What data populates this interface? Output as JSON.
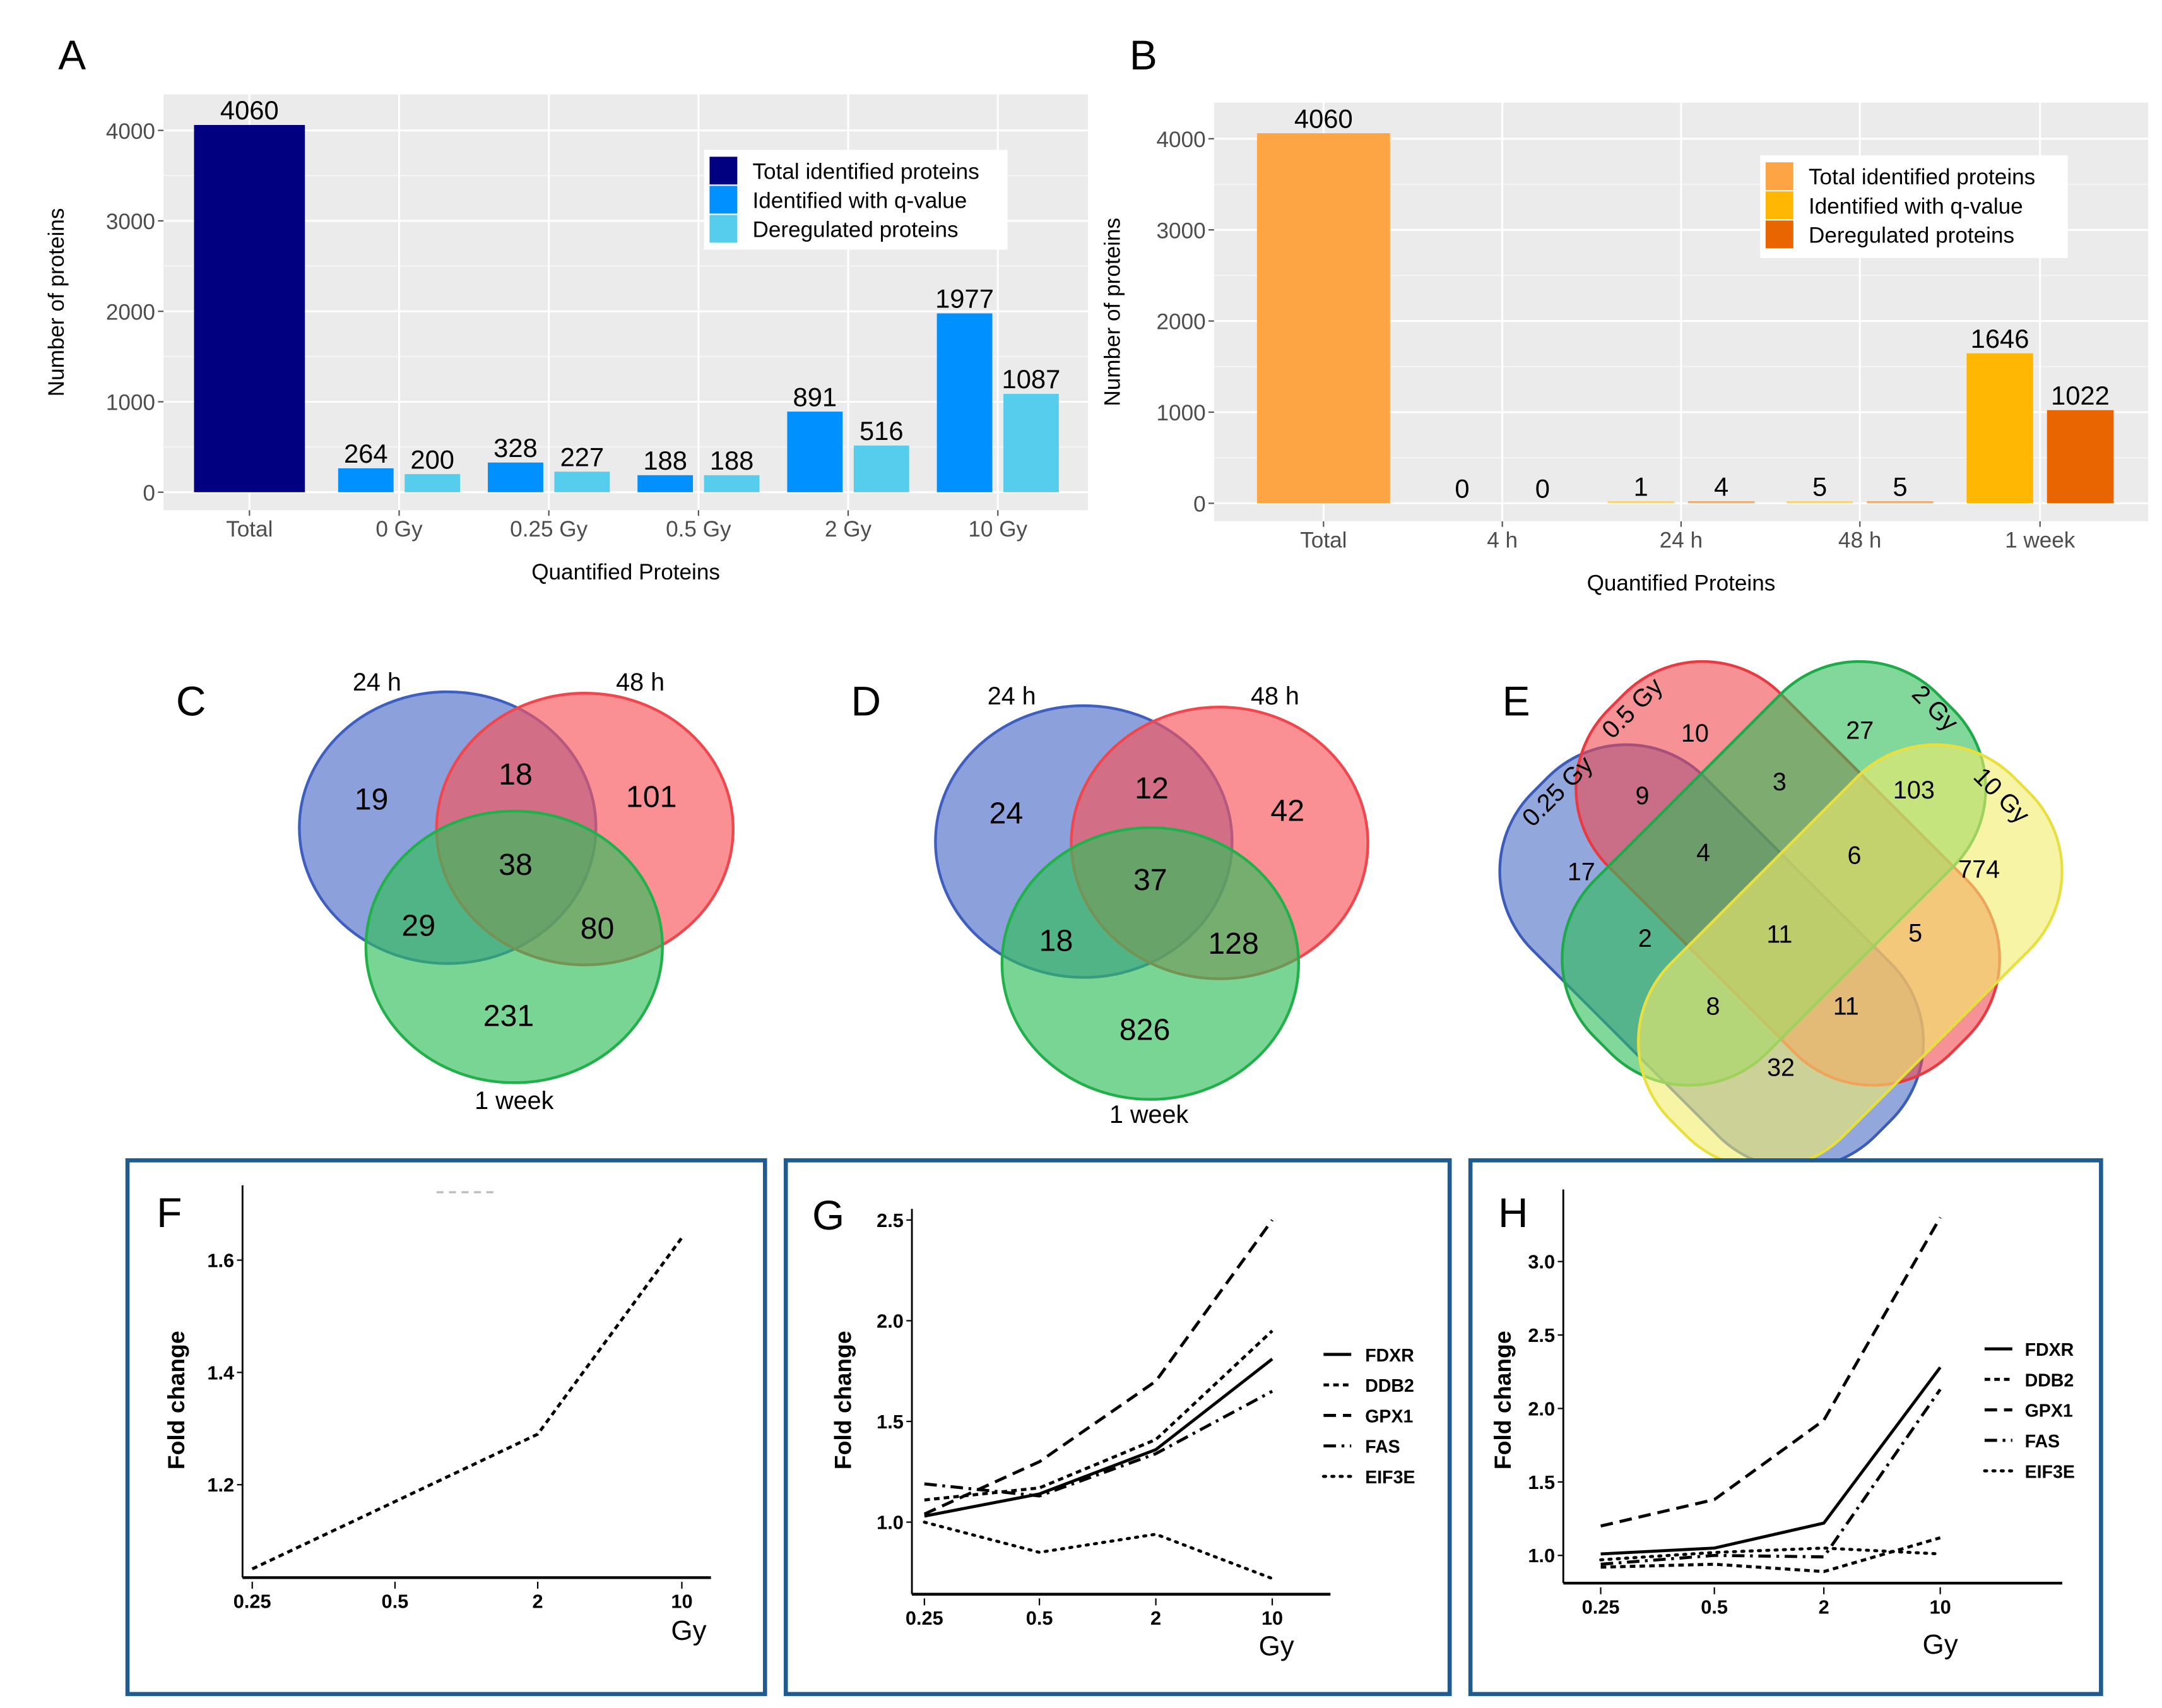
{
  "chart_data": [
    {
      "panel": "A",
      "type": "bar",
      "xlabel": "Quantified Proteins",
      "ylabel": "Number of proteins",
      "ylim": [
        0,
        4300
      ],
      "yticks": [
        "0",
        "1000",
        "2000",
        "3000",
        "4000"
      ],
      "grid": true,
      "legend_position": "top-right",
      "categories": [
        "Total",
        "0 Gy",
        "0.25 Gy",
        "0.5 Gy",
        "2 Gy",
        "10 Gy"
      ],
      "series": [
        {
          "name": "Total identified proteins",
          "color": "#000080",
          "values": [
            4060,
            null,
            null,
            null,
            null,
            null
          ]
        },
        {
          "name": "Identified with q-value",
          "color": "#0090ff",
          "values": [
            null,
            264,
            328,
            188,
            891,
            1977
          ]
        },
        {
          "name": "Deregulated proteins",
          "color": "#56cdec",
          "values": [
            null,
            200,
            227,
            188,
            516,
            1087
          ]
        }
      ],
      "labels": [
        [
          "4060",
          null,
          null,
          null,
          null,
          null
        ],
        [
          null,
          "264",
          "328",
          "188",
          "891",
          "1977"
        ],
        [
          null,
          "200",
          "227",
          "188",
          "516",
          "1087"
        ]
      ]
    },
    {
      "panel": "B",
      "type": "bar",
      "xlabel": "Quantified Proteins",
      "ylabel": "Number of proteins",
      "ylim": [
        0,
        4300
      ],
      "yticks": [
        "0",
        "1000",
        "2000",
        "3000",
        "4000"
      ],
      "grid": true,
      "legend_position": "top-right",
      "categories": [
        "Total",
        "4 h",
        "24 h",
        "48 h",
        "1 week"
      ],
      "series": [
        {
          "name": "Total identified proteins",
          "color": "#fda444",
          "values": [
            4060,
            null,
            null,
            null,
            null
          ]
        },
        {
          "name": "Identified with q-value",
          "color": "#ffb703",
          "values": [
            null,
            0,
            1,
            5,
            1646
          ]
        },
        {
          "name": "Deregulated proteins",
          "color": "#e86502",
          "values": [
            null,
            0,
            4,
            5,
            1022
          ]
        }
      ],
      "labels": [
        [
          "4060",
          null,
          null,
          null,
          null
        ],
        [
          null,
          "0",
          "1",
          "5",
          "1646"
        ],
        [
          null,
          "0",
          "4",
          "5",
          "1022"
        ]
      ]
    },
    {
      "panel": "C",
      "type": "venn",
      "sets": [
        {
          "name": "24 h",
          "color": "#4f6fc8"
        },
        {
          "name": "48 h",
          "color": "#f8555a"
        },
        {
          "name": "1 week",
          "color": "#2fbf5a"
        }
      ],
      "regions": [
        {
          "sets": [
            "24 h"
          ],
          "value": "19"
        },
        {
          "sets": [
            "24 h",
            "48 h"
          ],
          "value": "18"
        },
        {
          "sets": [
            "48 h"
          ],
          "value": "101"
        },
        {
          "sets": [
            "24 h",
            "48 h",
            "1 week"
          ],
          "value": "38"
        },
        {
          "sets": [
            "24 h",
            "1 week"
          ],
          "value": "29"
        },
        {
          "sets": [
            "48 h",
            "1 week"
          ],
          "value": "80"
        },
        {
          "sets": [
            "1 week"
          ],
          "value": "231"
        }
      ]
    },
    {
      "panel": "D",
      "type": "venn",
      "sets": [
        {
          "name": "24 h",
          "color": "#4f6fc8"
        },
        {
          "name": "48 h",
          "color": "#f8555a"
        },
        {
          "name": "1 week",
          "color": "#2fbf5a"
        }
      ],
      "regions": [
        {
          "sets": [
            "24 h"
          ],
          "value": "24"
        },
        {
          "sets": [
            "24 h",
            "48 h"
          ],
          "value": "12"
        },
        {
          "sets": [
            "48 h"
          ],
          "value": "42"
        },
        {
          "sets": [
            "24 h",
            "48 h",
            "1 week"
          ],
          "value": "37"
        },
        {
          "sets": [
            "24 h",
            "1 week"
          ],
          "value": "18"
        },
        {
          "sets": [
            "48 h",
            "1 week"
          ],
          "value": "128"
        },
        {
          "sets": [
            "1 week"
          ],
          "value": "826"
        }
      ]
    },
    {
      "panel": "E",
      "type": "venn",
      "sets": [
        {
          "name": "0.25 Gy",
          "color": "#4a6cc3"
        },
        {
          "name": "0.5 Gy",
          "color": "#f0484f"
        },
        {
          "name": "2 Gy",
          "color": "#2ebd59"
        },
        {
          "name": "10 Gy",
          "color": "#f3ec6a"
        }
      ],
      "regions": [
        {
          "sets": [
            "0.5 Gy"
          ],
          "value": "10"
        },
        {
          "sets": [
            "2 Gy"
          ],
          "value": "27"
        },
        {
          "sets": [
            "0.25 Gy",
            "0.5 Gy"
          ],
          "value": "9"
        },
        {
          "sets": [
            "0.5 Gy",
            "2 Gy"
          ],
          "value": "3"
        },
        {
          "sets": [
            "2 Gy",
            "10 Gy"
          ],
          "value": "103"
        },
        {
          "sets": [
            "0.25 Gy"
          ],
          "value": "17"
        },
        {
          "sets": [
            "0.25 Gy",
            "0.5 Gy",
            "2 Gy"
          ],
          "value": "4"
        },
        {
          "sets": [
            "0.5 Gy",
            "2 Gy",
            "10 Gy"
          ],
          "value": "6"
        },
        {
          "sets": [
            "10 Gy"
          ],
          "value": "774"
        },
        {
          "sets": [
            "0.25 Gy",
            "2 Gy"
          ],
          "value": "2"
        },
        {
          "sets": [
            "0.25 Gy",
            "0.5 Gy",
            "2 Gy",
            "10 Gy"
          ],
          "value": "11"
        },
        {
          "sets": [
            "0.5 Gy",
            "10 Gy"
          ],
          "value": "5"
        },
        {
          "sets": [
            "0.25 Gy",
            "2 Gy",
            "10 Gy"
          ],
          "value": "8"
        },
        {
          "sets": [
            "0.25 Gy",
            "0.5 Gy",
            "10 Gy"
          ],
          "value": "11"
        },
        {
          "sets": [
            "0.25 Gy",
            "10 Gy"
          ],
          "value": "32"
        }
      ]
    },
    {
      "panel": "F",
      "type": "line",
      "xlabel": "Gy",
      "ylabel": "Fold change",
      "x": [
        "0.25",
        "0.5",
        "2",
        "10"
      ],
      "yticks": [
        "1.2",
        "1.4",
        "1.6"
      ],
      "ylim": [
        1.03,
        1.73
      ],
      "series": [
        {
          "style": "short-dash",
          "values": [
            1.05,
            1.17,
            1.29,
            1.64
          ]
        }
      ]
    },
    {
      "panel": "G",
      "type": "line",
      "xlabel": "Gy",
      "ylabel": "Fold change",
      "x": [
        "0.25",
        "0.5",
        "2",
        "10"
      ],
      "yticks": [
        "1.0",
        "1.5",
        "2.0",
        "2.5"
      ],
      "ylim": [
        0.65,
        2.55
      ],
      "legend_position": "right",
      "series": [
        {
          "name": "FDXR",
          "style": "solid",
          "values": [
            1.03,
            1.14,
            1.36,
            1.81
          ]
        },
        {
          "name": "DDB2",
          "style": "short-dash",
          "values": [
            1.11,
            1.17,
            1.41,
            1.95
          ]
        },
        {
          "name": "GPX1",
          "style": "long-dash",
          "values": [
            1.04,
            1.3,
            1.7,
            2.5
          ]
        },
        {
          "name": "FAS",
          "style": "dash-dot",
          "values": [
            1.19,
            1.13,
            1.34,
            1.65
          ]
        },
        {
          "name": "EIF3E",
          "style": "dotted",
          "values": [
            1.0,
            0.85,
            0.94,
            0.72
          ]
        }
      ]
    },
    {
      "panel": "H",
      "type": "line",
      "xlabel": "Gy",
      "ylabel": "Fold change",
      "x": [
        "0.25",
        "0.5",
        "2",
        "10"
      ],
      "yticks": [
        "1.0",
        "1.5",
        "2.0",
        "2.5",
        "3.0"
      ],
      "ylim": [
        0.81,
        3.45
      ],
      "legend_position": "right",
      "series": [
        {
          "name": "FDXR",
          "style": "solid",
          "values": [
            1.01,
            1.05,
            1.22,
            2.28
          ]
        },
        {
          "name": "DDB2",
          "style": "short-dash",
          "values": [
            0.92,
            0.94,
            0.89,
            1.12
          ]
        },
        {
          "name": "GPX1",
          "style": "long-dash",
          "values": [
            1.2,
            1.38,
            1.92,
            3.3
          ]
        },
        {
          "name": "FAS",
          "style": "dash-dot",
          "values": [
            0.94,
            1.0,
            0.99,
            2.13
          ]
        },
        {
          "name": "EIF3E",
          "style": "dotted",
          "values": [
            0.97,
            1.02,
            1.05,
            1.01
          ]
        }
      ]
    }
  ],
  "panel_letters": [
    "A",
    "B",
    "C",
    "D",
    "E",
    "F",
    "G",
    "H"
  ],
  "frame_color": "#1f5b8e"
}
